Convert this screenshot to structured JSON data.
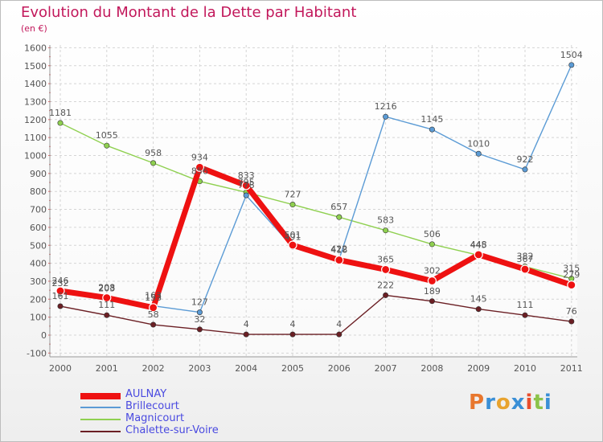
{
  "header": {
    "title": "Evolution du Montant de la Dette par Habitant",
    "subtitle": "(en €)"
  },
  "logo": {
    "text": "Proxiti",
    "colors": [
      "#e8772e",
      "#3a8fd6",
      "#e8a32e",
      "#3a8fd6",
      "#e84e2e",
      "#8bc34a",
      "#3a8fd6"
    ]
  },
  "chart_data": {
    "type": "line",
    "title": "Evolution du Montant de la Dette par Habitant",
    "subtitle": "(en €)",
    "xlabel": "",
    "ylabel": "",
    "x": [
      "2000",
      "2001",
      "2002",
      "2003",
      "2004",
      "2005",
      "2006",
      "2007",
      "2008",
      "2009",
      "2010",
      "2011"
    ],
    "ylim": [
      -100,
      1600
    ],
    "yticks": [
      -100,
      0,
      100,
      200,
      300,
      400,
      500,
      600,
      700,
      800,
      900,
      1000,
      1100,
      1200,
      1300,
      1400,
      1500,
      1600
    ],
    "grid": true,
    "legend_position": "bottom-left",
    "series": [
      {
        "name": "Chalette-sur-Voire",
        "color": "#6b1f24",
        "values": [
          161,
          111,
          58,
          32,
          4,
          4,
          4,
          222,
          189,
          145,
          111,
          76
        ]
      },
      {
        "name": "Magnicourt",
        "color": "#8fd050",
        "values": [
          1181,
          1055,
          958,
          856,
          795,
          727,
          657,
          583,
          506,
          445,
          382,
          315
        ]
      },
      {
        "name": "Brillecourt",
        "color": "#5b9bd5",
        "values": [
          232,
          203,
          163,
          127,
          778,
          491,
          422,
          1216,
          1145,
          1010,
          922,
          1504
        ]
      },
      {
        "name": "AULNAY",
        "color": "#ee1111",
        "values": [
          246,
          208,
          153,
          934,
          833,
          501,
          418,
          365,
          302,
          448,
          367,
          279
        ]
      }
    ],
    "legend_order": [
      "AULNAY",
      "Brillecourt",
      "Magnicourt",
      "Chalette-sur-Voire"
    ]
  }
}
